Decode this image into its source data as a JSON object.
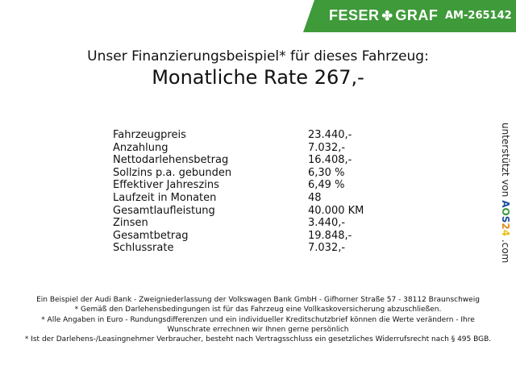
{
  "header": {
    "brand_left": "FESER",
    "brand_right": "GRAF",
    "brand_icon": "clover-icon",
    "code": "AM-265142",
    "brand_color": "#3f9a3a"
  },
  "title": {
    "line1": "Unser Finanzierungsbeispiel* für dieses Fahrzeug:",
    "line2": "Monatliche Rate 267,-"
  },
  "rows": [
    {
      "label": "Fahrzeugpreis",
      "value": "23.440,-"
    },
    {
      "label": "Anzahlung",
      "value": "7.032,-"
    },
    {
      "label": "Nettodarlehensbetrag",
      "value": "16.408,-"
    },
    {
      "label": "Sollzins p.a. gebunden",
      "value": "6,30 %"
    },
    {
      "label": "Effektiver Jahreszins",
      "value": "6,49 %"
    },
    {
      "label": "Laufzeit in Monaten",
      "value": "48"
    },
    {
      "label": "Gesamtlaufleistung",
      "value": "40.000 KM"
    },
    {
      "label": "Zinsen",
      "value": "3.440,-"
    },
    {
      "label": "Gesamtbetrag",
      "value": "19.848,-"
    },
    {
      "label": "Schlussrate",
      "value": "7.032,-"
    }
  ],
  "side": {
    "prefix": "unterstützt von",
    "logo": "AOS24",
    "suffix": ".com"
  },
  "footer": {
    "line1": "Ein Beispiel der Audi Bank - Zweigniederlassung der Volkswagen Bank GmbH - Gifhorner Straße 57 - 38112 Braunschweig",
    "line2": "* Gemäß den Darlehensbedingungen ist für das Fahrzeug eine Vollkaskoversicherung abzuschließen.",
    "line3": "* Alle Angaben in Euro - Rundungsdifferenzen und ein individueller Kreditschutzbrief können die Werte verändern - Ihre Wunschrate errechnen wir Ihnen gerne persönlich",
    "line4": "* Ist der Darlehens-/Leasingnehmer Verbraucher, besteht nach Vertragsschluss ein gesetzliches Widerrufsrecht nach § 495 BGB."
  }
}
